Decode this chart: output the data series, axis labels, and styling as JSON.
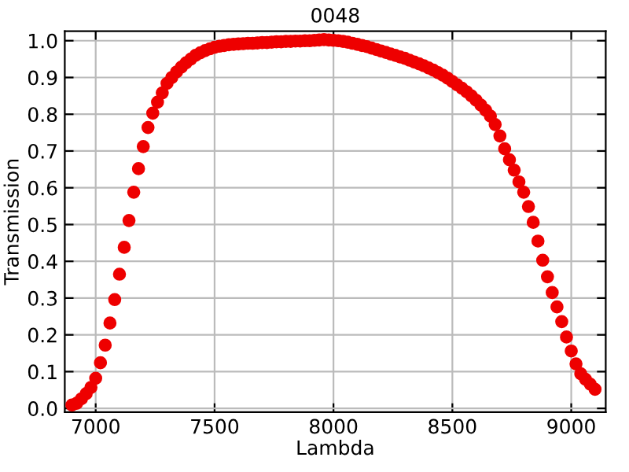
{
  "chart_data": {
    "type": "scatter",
    "title": "0048",
    "xlabel": "Lambda",
    "ylabel": "Transmission",
    "x": [
      6900,
      6920,
      6940,
      6960,
      6980,
      7000,
      7020,
      7040,
      7060,
      7080,
      7100,
      7120,
      7140,
      7160,
      7180,
      7200,
      7220,
      7240,
      7260,
      7280,
      7300,
      7320,
      7340,
      7360,
      7380,
      7400,
      7420,
      7440,
      7460,
      7480,
      7500,
      7520,
      7540,
      7560,
      7580,
      7600,
      7620,
      7640,
      7660,
      7680,
      7700,
      7720,
      7740,
      7760,
      7780,
      7800,
      7820,
      7840,
      7860,
      7880,
      7900,
      7920,
      7940,
      7960,
      7980,
      8000,
      8020,
      8040,
      8060,
      8080,
      8100,
      8120,
      8140,
      8160,
      8180,
      8200,
      8220,
      8240,
      8260,
      8280,
      8300,
      8320,
      8340,
      8360,
      8380,
      8400,
      8420,
      8440,
      8460,
      8480,
      8500,
      8520,
      8540,
      8560,
      8580,
      8600,
      8620,
      8640,
      8660,
      8680,
      8700,
      8720,
      8740,
      8760,
      8780,
      8800,
      8820,
      8840,
      8860,
      8880,
      8900,
      8920,
      8940,
      8960,
      8980,
      9000,
      9020,
      9040,
      9060,
      9080,
      9100
    ],
    "series": [
      {
        "color": "#ee0000",
        "values": [
          0.009,
          0.014,
          0.026,
          0.04,
          0.057,
          0.082,
          0.124,
          0.172,
          0.232,
          0.296,
          0.365,
          0.438,
          0.511,
          0.588,
          0.652,
          0.712,
          0.764,
          0.803,
          0.833,
          0.858,
          0.884,
          0.9,
          0.915,
          0.928,
          0.94,
          0.95,
          0.96,
          0.967,
          0.973,
          0.978,
          0.982,
          0.985,
          0.987,
          0.989,
          0.99,
          0.991,
          0.992,
          0.993,
          0.993,
          0.994,
          0.995,
          0.995,
          0.996,
          0.997,
          0.997,
          0.998,
          0.998,
          0.999,
          0.999,
          1.0,
          1.0,
          1.001,
          1.002,
          1.003,
          1.002,
          1.001,
          1.0,
          0.998,
          0.996,
          0.993,
          0.99,
          0.987,
          0.984,
          0.98,
          0.976,
          0.972,
          0.968,
          0.964,
          0.96,
          0.956,
          0.952,
          0.947,
          0.942,
          0.937,
          0.932,
          0.926,
          0.92,
          0.913,
          0.906,
          0.898,
          0.889,
          0.88,
          0.871,
          0.861,
          0.85,
          0.838,
          0.825,
          0.811,
          0.795,
          0.772,
          0.741,
          0.706,
          0.676,
          0.648,
          0.616,
          0.588,
          0.549,
          0.506,
          0.455,
          0.403,
          0.358,
          0.315,
          0.276,
          0.236,
          0.194,
          0.156,
          0.121,
          0.094,
          0.079,
          0.066,
          0.052
        ]
      }
    ],
    "xlim": [
      6870,
      9145
    ],
    "ylim": [
      -0.01,
      1.026
    ],
    "xticks": [
      7000,
      7500,
      8000,
      8500,
      9000
    ],
    "yticks": [
      {
        "value": 0,
        "label": "0.0"
      },
      0.1,
      0.2,
      0.3,
      0.4,
      0.5,
      0.6,
      0.7,
      0.8,
      0.9,
      {
        "value": 1,
        "label": "1.0"
      }
    ],
    "grid": true,
    "marker": "circle"
  }
}
